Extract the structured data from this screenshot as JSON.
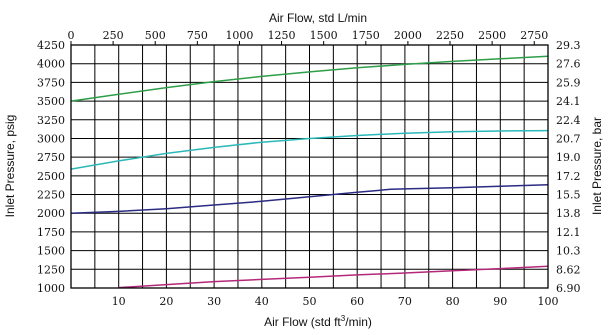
{
  "chart_data": {
    "type": "line",
    "xlabel_bottom_prefix": "Air Flow (std ft",
    "xlabel_bottom_sup": "3",
    "xlabel_bottom_suffix": "/min)",
    "xlabel_top": "Air Flow, std L/min",
    "ylabel_left": "Inlet Pressure, psig",
    "ylabel_right": "Inlet Pressure, bar",
    "xlim": [
      0,
      100
    ],
    "ylim": [
      1000,
      4250
    ],
    "x_ticks_bottom": [
      10,
      20,
      30,
      40,
      50,
      60,
      70,
      80,
      90,
      100
    ],
    "x_ticks_top": [
      0,
      250,
      500,
      750,
      1000,
      1250,
      1500,
      1750,
      2000,
      2250,
      2500,
      2750
    ],
    "x_top_per_bottom_unit": 28.317,
    "y_ticks_left": [
      1000,
      1250,
      1500,
      1750,
      2000,
      2250,
      2500,
      2750,
      3000,
      3250,
      3500,
      3750,
      4000,
      4250
    ],
    "y_ticks_right": [
      "6.90",
      "8.62",
      "10.3",
      "12.1",
      "13.8",
      "15.5",
      "17.2",
      "19.0",
      "20.7",
      "22.4",
      "24.1",
      "25.9",
      "27.6",
      "29.3"
    ],
    "grid": true,
    "colors": {
      "green": "#2e9e48",
      "cyan": "#2cb8b8",
      "navy": "#2b2b82",
      "magenta": "#b3287a"
    },
    "series": [
      {
        "color": "green",
        "x": [
          0,
          10,
          20,
          30,
          40,
          50,
          60,
          70,
          80,
          90,
          100
        ],
        "y": [
          3500,
          3590,
          3680,
          3760,
          3830,
          3890,
          3945,
          3990,
          4030,
          4065,
          4100
        ]
      },
      {
        "color": "cyan",
        "x": [
          0,
          10,
          20,
          30,
          40,
          50,
          60,
          70,
          80,
          90,
          100
        ],
        "y": [
          2590,
          2700,
          2800,
          2880,
          2950,
          3000,
          3040,
          3070,
          3090,
          3100,
          3105
        ]
      },
      {
        "color": "navy",
        "x": [
          0,
          10,
          20,
          30,
          40,
          50,
          60,
          67,
          70,
          80,
          90,
          100
        ],
        "y": [
          2000,
          2025,
          2060,
          2110,
          2160,
          2220,
          2280,
          2320,
          2325,
          2340,
          2360,
          2380
        ]
      },
      {
        "color": "magenta",
        "x": [
          10,
          20,
          30,
          40,
          50,
          60,
          70,
          80,
          90,
          100
        ],
        "y": [
          1005,
          1045,
          1085,
          1115,
          1145,
          1175,
          1200,
          1230,
          1260,
          1290
        ]
      }
    ]
  }
}
